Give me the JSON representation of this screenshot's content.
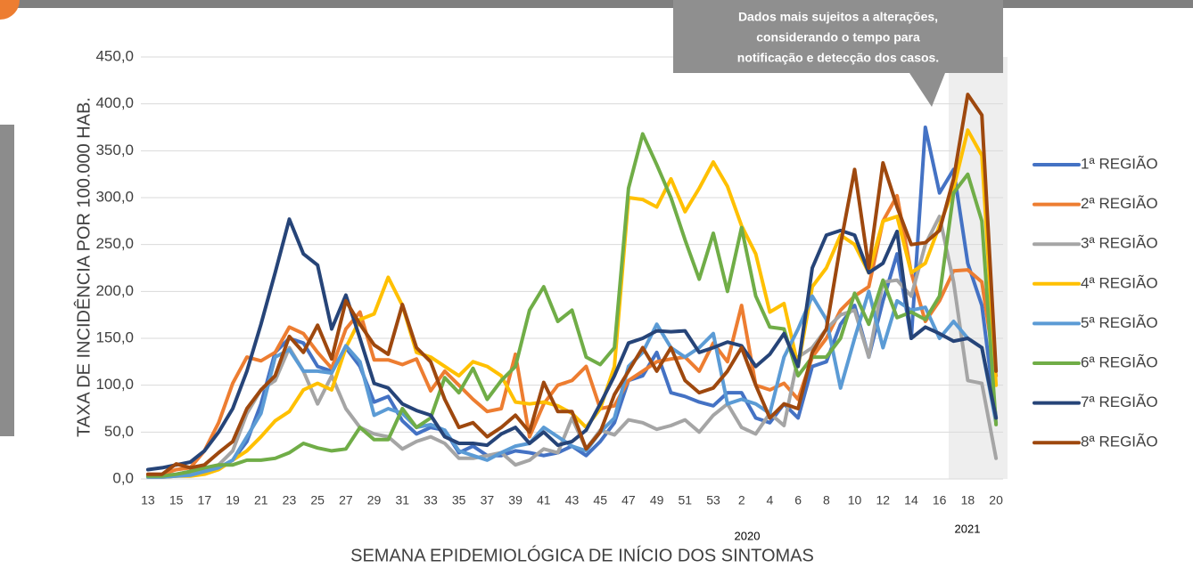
{
  "chart_data": {
    "type": "line",
    "y_axis_label": "TAXA DE INCIDÊNCIA POR 100.000 HAB.",
    "x_axis_label": "SEMANA EPIDEMIOLÓGICA DE INÍCIO DOS SINTOMAS",
    "annotation": [
      "Dados mais sujeitos a alterações,",
      "considerando o tempo para",
      "notificação e detecção dos casos."
    ],
    "year_labels": [
      "2020",
      "2021"
    ],
    "categories": [
      "13",
      null,
      "15",
      null,
      "17",
      null,
      "19",
      null,
      "21",
      null,
      "23",
      null,
      "25",
      null,
      "27",
      null,
      "29",
      null,
      "31",
      null,
      "33",
      null,
      "35",
      null,
      "37",
      null,
      "39",
      null,
      "41",
      null,
      "43",
      null,
      "45",
      null,
      "47",
      null,
      "49",
      null,
      "51",
      null,
      "53",
      null,
      "2",
      null,
      "4",
      null,
      "6",
      null,
      "8",
      null,
      "10",
      null,
      "12",
      null,
      "14",
      null,
      "16",
      null,
      "18",
      null,
      "20"
    ],
    "ylim": [
      0,
      450
    ],
    "yticks": [
      {
        "value": 0,
        "label": "0,0"
      },
      {
        "value": 50,
        "label": "50,0"
      },
      {
        "value": 100,
        "label": "100,0"
      },
      {
        "value": 150,
        "label": "150,0"
      },
      {
        "value": 200,
        "label": "200,0"
      },
      {
        "value": 250,
        "label": "250,0"
      },
      {
        "value": 300,
        "label": "300,0"
      },
      {
        "value": 350,
        "label": "350,0"
      },
      {
        "value": 400,
        "label": "400,0"
      },
      {
        "value": 450,
        "label": "450,0"
      }
    ],
    "grid": true,
    "legend": "right",
    "series": [
      {
        "name": "1ª REGIÃO",
        "color": "#4472c4",
        "values": [
          3,
          3,
          5,
          8,
          10,
          12,
          20,
          40,
          80,
          135,
          150,
          145,
          120,
          115,
          140,
          120,
          82,
          88,
          62,
          48,
          55,
          52,
          28,
          35,
          25,
          25,
          30,
          28,
          25,
          28,
          35,
          25,
          40,
          60,
          105,
          110,
          135,
          92,
          88,
          82,
          78,
          92,
          92,
          65,
          60,
          80,
          65,
          120,
          125,
          165,
          185,
          130,
          190,
          240,
          150,
          375,
          305,
          330,
          230,
          185,
          65
        ]
      },
      {
        "name": "2ª REGIÃO",
        "color": "#ed7d31",
        "values": [
          5,
          5,
          10,
          12,
          30,
          60,
          102,
          130,
          126,
          135,
          162,
          155,
          135,
          118,
          160,
          178,
          127,
          127,
          122,
          128,
          94,
          115,
          100,
          85,
          72,
          75,
          133,
          45,
          80,
          100,
          105,
          120,
          75,
          78,
          105,
          115,
          125,
          128,
          130,
          115,
          145,
          125,
          185,
          100,
          95,
          102,
          85,
          130,
          150,
          180,
          195,
          205,
          275,
          302,
          220,
          168,
          190,
          222,
          223,
          210,
          110
        ]
      },
      {
        "name": "3ª REGIÃO",
        "color": "#a5a5a5",
        "values": [
          2,
          2,
          3,
          5,
          8,
          15,
          30,
          70,
          95,
          105,
          140,
          115,
          80,
          110,
          75,
          55,
          48,
          45,
          32,
          40,
          45,
          38,
          22,
          22,
          25,
          28,
          15,
          20,
          32,
          28,
          65,
          32,
          52,
          47,
          63,
          60,
          53,
          57,
          63,
          50,
          68,
          80,
          55,
          48,
          70,
          57,
          130,
          140,
          160,
          175,
          180,
          130,
          210,
          212,
          195,
          250,
          280,
          210,
          105,
          102,
          22
        ]
      },
      {
        "name": "4ª REGIÃO",
        "color": "#ffc000",
        "values": [
          2,
          2,
          3,
          3,
          5,
          10,
          20,
          30,
          45,
          62,
          72,
          95,
          102,
          95,
          140,
          170,
          176,
          215,
          185,
          135,
          130,
          120,
          110,
          125,
          120,
          110,
          82,
          80,
          82,
          78,
          70,
          55,
          75,
          120,
          300,
          298,
          290,
          320,
          285,
          310,
          338,
          312,
          270,
          240,
          178,
          187,
          120,
          205,
          225,
          260,
          250,
          220,
          275,
          280,
          220,
          230,
          270,
          310,
          372,
          345,
          100
        ]
      },
      {
        "name": "5ª REGIÃO",
        "color": "#5b9bd5",
        "values": [
          2,
          2,
          3,
          4,
          8,
          12,
          20,
          45,
          70,
          130,
          138,
          115,
          115,
          113,
          142,
          125,
          68,
          75,
          70,
          55,
          58,
          52,
          30,
          25,
          20,
          28,
          35,
          38,
          55,
          45,
          35,
          30,
          50,
          65,
          120,
          135,
          165,
          140,
          130,
          140,
          155,
          80,
          85,
          80,
          70,
          130,
          160,
          195,
          170,
          97,
          150,
          200,
          140,
          190,
          180,
          183,
          150,
          168,
          150,
          140,
          60
        ]
      },
      {
        "name": "6ª REGIÃO",
        "color": "#70ad47",
        "values": [
          3,
          3,
          5,
          8,
          12,
          15,
          15,
          20,
          20,
          22,
          28,
          38,
          33,
          30,
          32,
          55,
          42,
          42,
          75,
          55,
          65,
          108,
          92,
          118,
          85,
          105,
          120,
          180,
          205,
          168,
          180,
          130,
          122,
          140,
          310,
          368,
          335,
          300,
          255,
          213,
          262,
          200,
          268,
          195,
          162,
          160,
          110,
          130,
          130,
          150,
          198,
          165,
          212,
          172,
          178,
          170,
          195,
          305,
          325,
          275,
          58
        ]
      },
      {
        "name": "7ª REGIÃO",
        "color": "#264478",
        "values": [
          10,
          12,
          15,
          18,
          30,
          50,
          75,
          115,
          165,
          220,
          277,
          240,
          228,
          160,
          196,
          150,
          102,
          97,
          80,
          73,
          68,
          45,
          38,
          38,
          36,
          48,
          55,
          38,
          50,
          36,
          40,
          52,
          80,
          110,
          145,
          150,
          158,
          157,
          158,
          135,
          140,
          146,
          142,
          120,
          133,
          155,
          120,
          225,
          260,
          265,
          260,
          220,
          230,
          264,
          150,
          162,
          155,
          147,
          150,
          140,
          65
        ]
      },
      {
        "name": "8ª REGIÃO",
        "color": "#9e480e",
        "values": [
          5,
          5,
          16,
          12,
          15,
          28,
          40,
          75,
          95,
          110,
          152,
          135,
          164,
          128,
          190,
          165,
          143,
          133,
          186,
          140,
          125,
          85,
          55,
          60,
          45,
          55,
          68,
          50,
          103,
          72,
          72,
          32,
          50,
          90,
          115,
          140,
          115,
          140,
          105,
          92,
          97,
          115,
          140,
          100,
          65,
          80,
          75,
          135,
          160,
          250,
          330,
          225,
          337,
          290,
          250,
          252,
          265,
          320,
          410,
          388,
          115
        ]
      }
    ]
  }
}
